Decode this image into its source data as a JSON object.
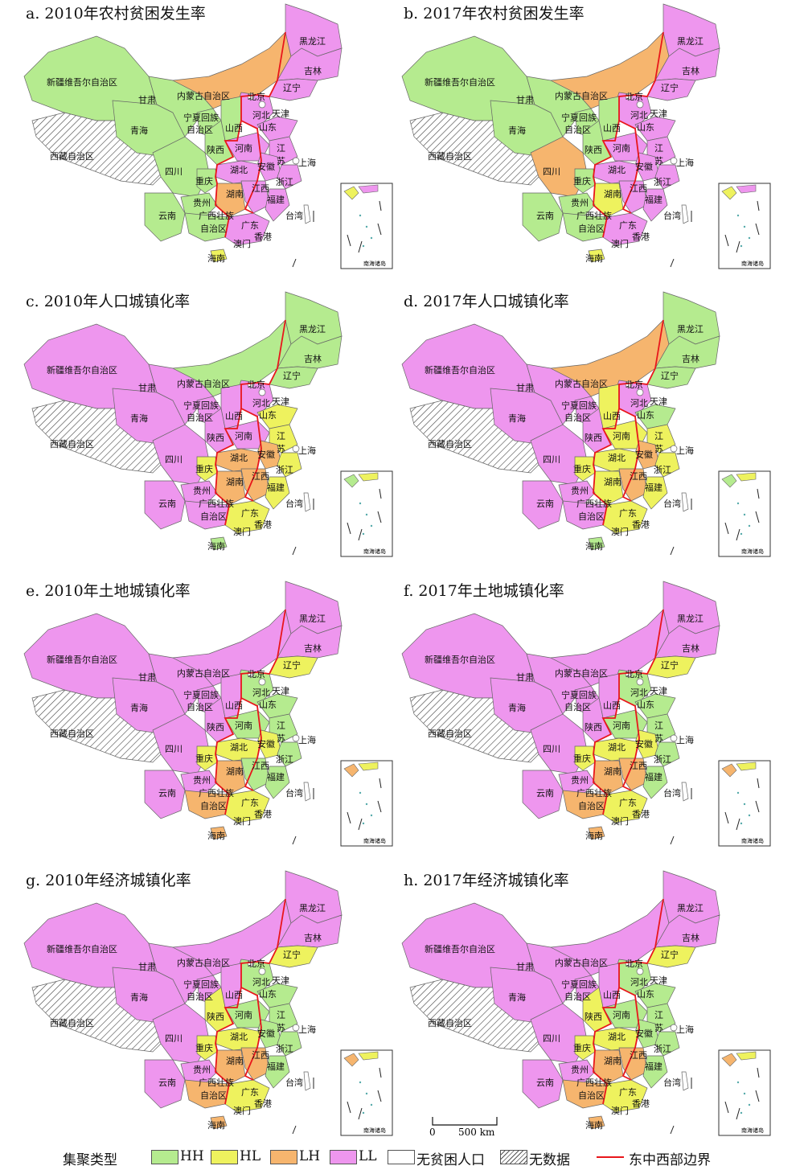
{
  "panels": [
    {
      "id": "a",
      "title": "a. 2010年农村贫困发生率"
    },
    {
      "id": "b",
      "title": "b. 2017年农村贫困发生率"
    },
    {
      "id": "c",
      "title": "c. 2010年人口城镇化率"
    },
    {
      "id": "d",
      "title": "d. 2017年人口城镇化率"
    },
    {
      "id": "e",
      "title": "e. 2010年土地城镇化率"
    },
    {
      "id": "f",
      "title": "f. 2017年土地城镇化率"
    },
    {
      "id": "g",
      "title": "g. 2010年经济城镇化率"
    },
    {
      "id": "h",
      "title": "h. 2017年经济城镇化率"
    }
  ],
  "region_labels": {
    "xinjiang": "新疆维吾尔自治区",
    "xizang": "西藏自治区",
    "qinghai": "青海",
    "gansu": "甘肃",
    "neimenggu": "内蒙古自治区",
    "heilongjiang": "黑龙江",
    "jilin": "吉林",
    "liaoning": "辽宁",
    "beijing": "北京",
    "tianjin": "天津",
    "hebei": "河北",
    "shandong": "山东",
    "shanxi": "山西",
    "ningxia": "宁夏回族",
    "ningxia2": "自治区",
    "shaanxi": "陕西",
    "henan": "河南",
    "jiangsu": "江",
    "jiangsu2": "苏",
    "shanghai": "上海",
    "anhui": "安徽",
    "hubei": "湖北",
    "zhejiang": "浙江",
    "sichuan": "四川",
    "chongqing": "重庆",
    "hunan": "湖南",
    "jiangxi": "江西",
    "fujian": "福建",
    "guizhou": "贵州",
    "yunnan": "云南",
    "guangxi": "广西壮族",
    "guangxi2": "自治区",
    "guangdong": "广东",
    "taiwan": "台湾",
    "xianggang": "香港",
    "aomen": "澳门",
    "hainan": "海南",
    "nanhai": "南海诸岛"
  },
  "colors": {
    "HH": "#b5eb8f",
    "HL": "#eef25e",
    "LH": "#f6b56e",
    "LL": "#ee96ee",
    "none": "#ffffff",
    "border": "#e8161b"
  },
  "legend": {
    "title": "集聚类型",
    "items": [
      {
        "key": "HH",
        "label": "HH"
      },
      {
        "key": "HL",
        "label": "HL"
      },
      {
        "key": "LH",
        "label": "LH"
      },
      {
        "key": "LL",
        "label": "LL"
      },
      {
        "key": "none",
        "label": "无贫困人口"
      },
      {
        "key": "nodata",
        "label": "无数据"
      },
      {
        "key": "border",
        "label": "东中西部边界"
      }
    ]
  },
  "scale": {
    "zero": "0",
    "dist": "500 km"
  },
  "classes": {
    "a": {
      "xinjiang": "HH",
      "qinghai": "HH",
      "gansu": "HH",
      "neimenggu": "LH",
      "heilongjiang": "LL",
      "jilin": "LL",
      "liaoning": "LL",
      "hebei": "LL",
      "shandong": "LL",
      "shanxi": "HH",
      "ningxia": "HH",
      "shaanxi": "HH",
      "henan": "LL",
      "jiangsu": "LL",
      "anhui": "LL",
      "hubei": "LL",
      "zhejiang": "LL",
      "sichuan": "HH",
      "chongqing": "HH",
      "hunan": "LH",
      "jiangxi": "LL",
      "fujian": "LL",
      "guizhou": "HH",
      "yunnan": "HH",
      "guangxi": "HH",
      "guangdong": "LL",
      "hainan": "HL",
      "ne": "LH"
    },
    "b": {
      "xinjiang": "HH",
      "qinghai": "HH",
      "gansu": "HH",
      "neimenggu": "LH",
      "heilongjiang": "LL",
      "jilin": "LL",
      "liaoning": "LL",
      "hebei": "LL",
      "shandong": "LL",
      "shanxi": "HH",
      "ningxia": "HH",
      "shaanxi": "HH",
      "henan": "LL",
      "jiangsu": "LL",
      "anhui": "LL",
      "hubei": "LL",
      "zhejiang": "LL",
      "sichuan": "LH",
      "chongqing": "HH",
      "hunan": "HL",
      "jiangxi": "LL",
      "fujian": "LL",
      "guizhou": "HH",
      "yunnan": "HH",
      "guangxi": "HH",
      "guangdong": "LL",
      "hainan": "HL",
      "ne": "LH"
    },
    "c": {
      "xinjiang": "LL",
      "qinghai": "LL",
      "gansu": "LL",
      "neimenggu": "HH",
      "heilongjiang": "HH",
      "jilin": "HH",
      "liaoning": "HH",
      "hebei": "LL",
      "shandong": "HL",
      "shanxi": "LL",
      "ningxia": "LL",
      "shaanxi": "LL",
      "henan": "LL",
      "jiangsu": "HL",
      "anhui": "LH",
      "hubei": "LH",
      "zhejiang": "HL",
      "sichuan": "LL",
      "chongqing": "HL",
      "hunan": "LH",
      "jiangxi": "LH",
      "fujian": "HL",
      "guizhou": "LL",
      "yunnan": "LL",
      "guangxi": "LL",
      "guangdong": "HL",
      "hainan": "HH",
      "ne": "LL"
    },
    "d": {
      "xinjiang": "LL",
      "qinghai": "LL",
      "gansu": "LL",
      "neimenggu": "LH",
      "heilongjiang": "HH",
      "jilin": "HH",
      "liaoning": "HH",
      "hebei": "LL",
      "shandong": "HH",
      "shanxi": "HL",
      "ningxia": "LL",
      "shaanxi": "LL",
      "henan": "HL",
      "jiangsu": "HL",
      "anhui": "LH",
      "hubei": "HL",
      "zhejiang": "HL",
      "sichuan": "LL",
      "chongqing": "HL",
      "hunan": "HL",
      "jiangxi": "LH",
      "fujian": "HL",
      "guizhou": "LL",
      "yunnan": "LL",
      "guangxi": "LL",
      "guangdong": "HL",
      "hainan": "HH",
      "ne": "LH"
    },
    "e": {
      "xinjiang": "LL",
      "qinghai": "LL",
      "gansu": "LL",
      "neimenggu": "LL",
      "heilongjiang": "LL",
      "jilin": "LL",
      "liaoning": "HL",
      "hebei": "HH",
      "shandong": "HH",
      "shanxi": "LL",
      "ningxia": "LL",
      "shaanxi": "LL",
      "henan": "HH",
      "jiangsu": "HH",
      "anhui": "HL",
      "hubei": "HL",
      "zhejiang": "HH",
      "sichuan": "LL",
      "chongqing": "HL",
      "hunan": "LH",
      "jiangxi": "HH",
      "fujian": "HH",
      "guizhou": "LL",
      "yunnan": "LL",
      "guangxi": "LH",
      "guangdong": "HL",
      "hainan": "LH",
      "ne": "LL"
    },
    "f": {
      "xinjiang": "LL",
      "qinghai": "LL",
      "gansu": "LL",
      "neimenggu": "LL",
      "heilongjiang": "LL",
      "jilin": "LL",
      "liaoning": "HL",
      "hebei": "HH",
      "shandong": "HH",
      "shanxi": "LL",
      "ningxia": "LL",
      "shaanxi": "LL",
      "henan": "HH",
      "jiangsu": "HH",
      "anhui": "HL",
      "hubei": "HL",
      "zhejiang": "HH",
      "sichuan": "LL",
      "chongqing": "HL",
      "hunan": "LH",
      "jiangxi": "LH",
      "fujian": "HH",
      "guizhou": "LL",
      "yunnan": "LL",
      "guangxi": "LH",
      "guangdong": "HL",
      "hainan": "LH",
      "ne": "LL"
    },
    "g": {
      "xinjiang": "LL",
      "qinghai": "LL",
      "gansu": "LL",
      "neimenggu": "LL",
      "heilongjiang": "LL",
      "jilin": "LL",
      "liaoning": "HL",
      "hebei": "HH",
      "shandong": "HH",
      "shanxi": "LL",
      "ningxia": "LL",
      "shaanxi": "HL",
      "henan": "HH",
      "jiangsu": "HH",
      "anhui": "HH",
      "hubei": "HL",
      "zhejiang": "HH",
      "sichuan": "LL",
      "chongqing": "HL",
      "hunan": "LH",
      "jiangxi": "LH",
      "fujian": "HH",
      "guizhou": "LL",
      "yunnan": "LL",
      "guangxi": "LH",
      "guangdong": "HL",
      "hainan": "LH",
      "ne": "LL"
    },
    "h": {
      "xinjiang": "LL",
      "qinghai": "LL",
      "gansu": "LL",
      "neimenggu": "LL",
      "heilongjiang": "LL",
      "jilin": "LL",
      "liaoning": "HL",
      "hebei": "HH",
      "shandong": "HH",
      "shanxi": "LL",
      "ningxia": "LL",
      "shaanxi": "HL",
      "henan": "HH",
      "jiangsu": "HH",
      "anhui": "HH",
      "hubei": "HL",
      "zhejiang": "HH",
      "sichuan": "LL",
      "chongqing": "HL",
      "hunan": "LH",
      "jiangxi": "LH",
      "fujian": "HH",
      "guizhou": "LL",
      "yunnan": "LL",
      "guangxi": "LH",
      "guangdong": "HL",
      "hainan": "LH",
      "ne": "LL"
    }
  }
}
